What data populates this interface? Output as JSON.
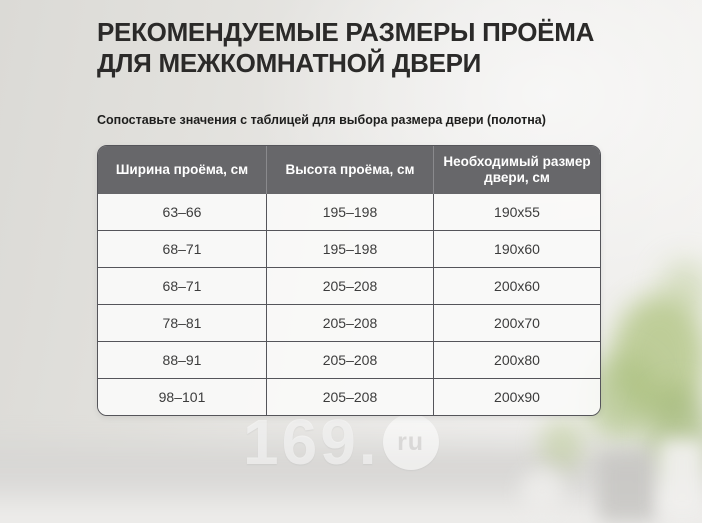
{
  "title": {
    "line1": "РЕКОМЕНДУЕМЫЕ РАЗМЕРЫ ПРОЁМА",
    "line2": "ДЛЯ МЕЖКОМНАТНОЙ ДВЕРИ"
  },
  "subtitle": "Сопоставьте значения с таблицей для выбора размера двери (полотна)",
  "chart_data": {
    "type": "table",
    "title": "Рекомендуемые размеры проёма для межкомнатной двери",
    "headers": [
      "Ширина проёма, см",
      "Высота проёма, см",
      "Необходимый размер двери, см"
    ],
    "rows": [
      [
        "63–66",
        "195–198",
        "190x55"
      ],
      [
        "68–71",
        "195–198",
        "190x60"
      ],
      [
        "68–71",
        "205–208",
        "200x60"
      ],
      [
        "78–81",
        "205–208",
        "200x70"
      ],
      [
        "88–91",
        "205–208",
        "200x80"
      ],
      [
        "98–101",
        "205–208",
        "200x90"
      ]
    ]
  },
  "watermark": {
    "number": "169.",
    "suffix": "ru"
  },
  "colors": {
    "header_bg": "#67676a",
    "table_border": "#55555a",
    "title_text": "#2b2a29",
    "cell_bg": "#fafaf9",
    "plant_green": "#a9bf7d"
  }
}
